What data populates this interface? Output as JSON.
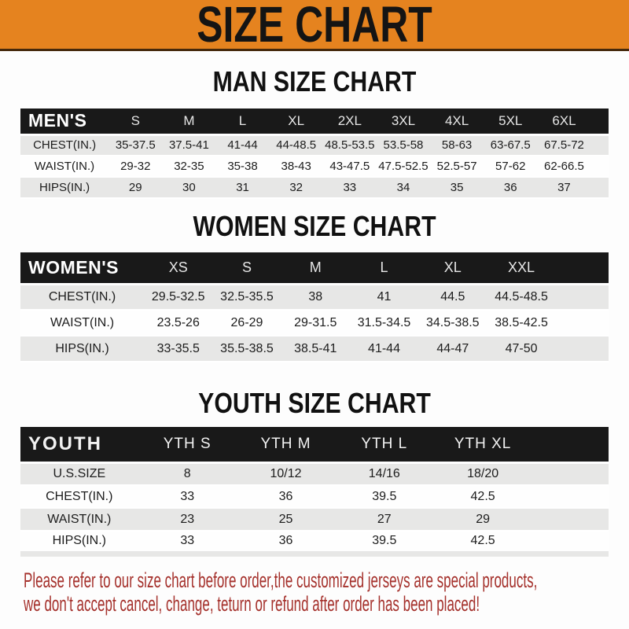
{
  "banner": {
    "title": "SIZE CHART"
  },
  "sections": [
    {
      "heading": "MAN SIZE CHART",
      "label": "MEN'S",
      "columns": [
        "S",
        "M",
        "L",
        "XL",
        "2XL",
        "3XL",
        "4XL",
        "5XL",
        "6XL"
      ],
      "rows": [
        {
          "label": "CHEST(IN.)",
          "values": [
            "35-37.5",
            "37.5-41",
            "41-44",
            "44-48.5",
            "48.5-53.5",
            "53.5-58",
            "58-63",
            "63-67.5",
            "67.5-72"
          ]
        },
        {
          "label": "WAIST(IN.)",
          "values": [
            "29-32",
            "32-35",
            "35-38",
            "38-43",
            "43-47.5",
            "47.5-52.5",
            "52.5-57",
            "57-62",
            "62-66.5"
          ]
        },
        {
          "label": "HIPS(IN.)",
          "values": [
            "29",
            "30",
            "31",
            "32",
            "33",
            "34",
            "35",
            "36",
            "37"
          ]
        }
      ]
    },
    {
      "heading": "WOMEN SIZE CHART",
      "label": "WOMEN'S",
      "columns": [
        "XS",
        "S",
        "M",
        "L",
        "XL",
        "XXL"
      ],
      "rows": [
        {
          "label": "CHEST(IN.)",
          "values": [
            "29.5-32.5",
            "32.5-35.5",
            "38",
            "41",
            "44.5",
            "44.5-48.5"
          ]
        },
        {
          "label": "WAIST(IN.)",
          "values": [
            "23.5-26",
            "26-29",
            "29-31.5",
            "31.5-34.5",
            "34.5-38.5",
            "38.5-42.5"
          ]
        },
        {
          "label": "HIPS(IN.)",
          "values": [
            "33-35.5",
            "35.5-38.5",
            "38.5-41",
            "41-44",
            "44-47",
            "47-50"
          ]
        }
      ]
    },
    {
      "heading": "YOUTH SIZE CHART",
      "label": "YOUTH",
      "columns": [
        "YTH S",
        "YTH M",
        "YTH L",
        "YTH XL"
      ],
      "rows": [
        {
          "label": "U.S.SIZE",
          "values": [
            "8",
            "10/12",
            "14/16",
            "18/20"
          ]
        },
        {
          "label": "CHEST(IN.)",
          "values": [
            "33",
            "36",
            "39.5",
            "42.5"
          ]
        },
        {
          "label": "WAIST(IN.)",
          "values": [
            "23",
            "25",
            "27",
            "29"
          ]
        },
        {
          "label": "HIPS(IN.)",
          "values": [
            "33",
            "36",
            "39.5",
            "42.5"
          ]
        }
      ]
    }
  ],
  "footer": {
    "line1": "Please refer to our size chart before order,the customized jerseys are special products,",
    "line2": "we don't accept cancel, change, teturn or refund after order has been placed!"
  },
  "colors": {
    "banner_bg": "#E5831F",
    "banner_edge": "#45290C",
    "bar_bg": "#191919",
    "bar_text": "#FFFFFF",
    "bar_size_text": "#E6E6E6",
    "row_gray": "#E7E7E6",
    "row_white": "#FEFEFE",
    "body_text": "#1C1C1C",
    "footer_red": "#A5312C",
    "page_bg": "#FDFDFD"
  }
}
